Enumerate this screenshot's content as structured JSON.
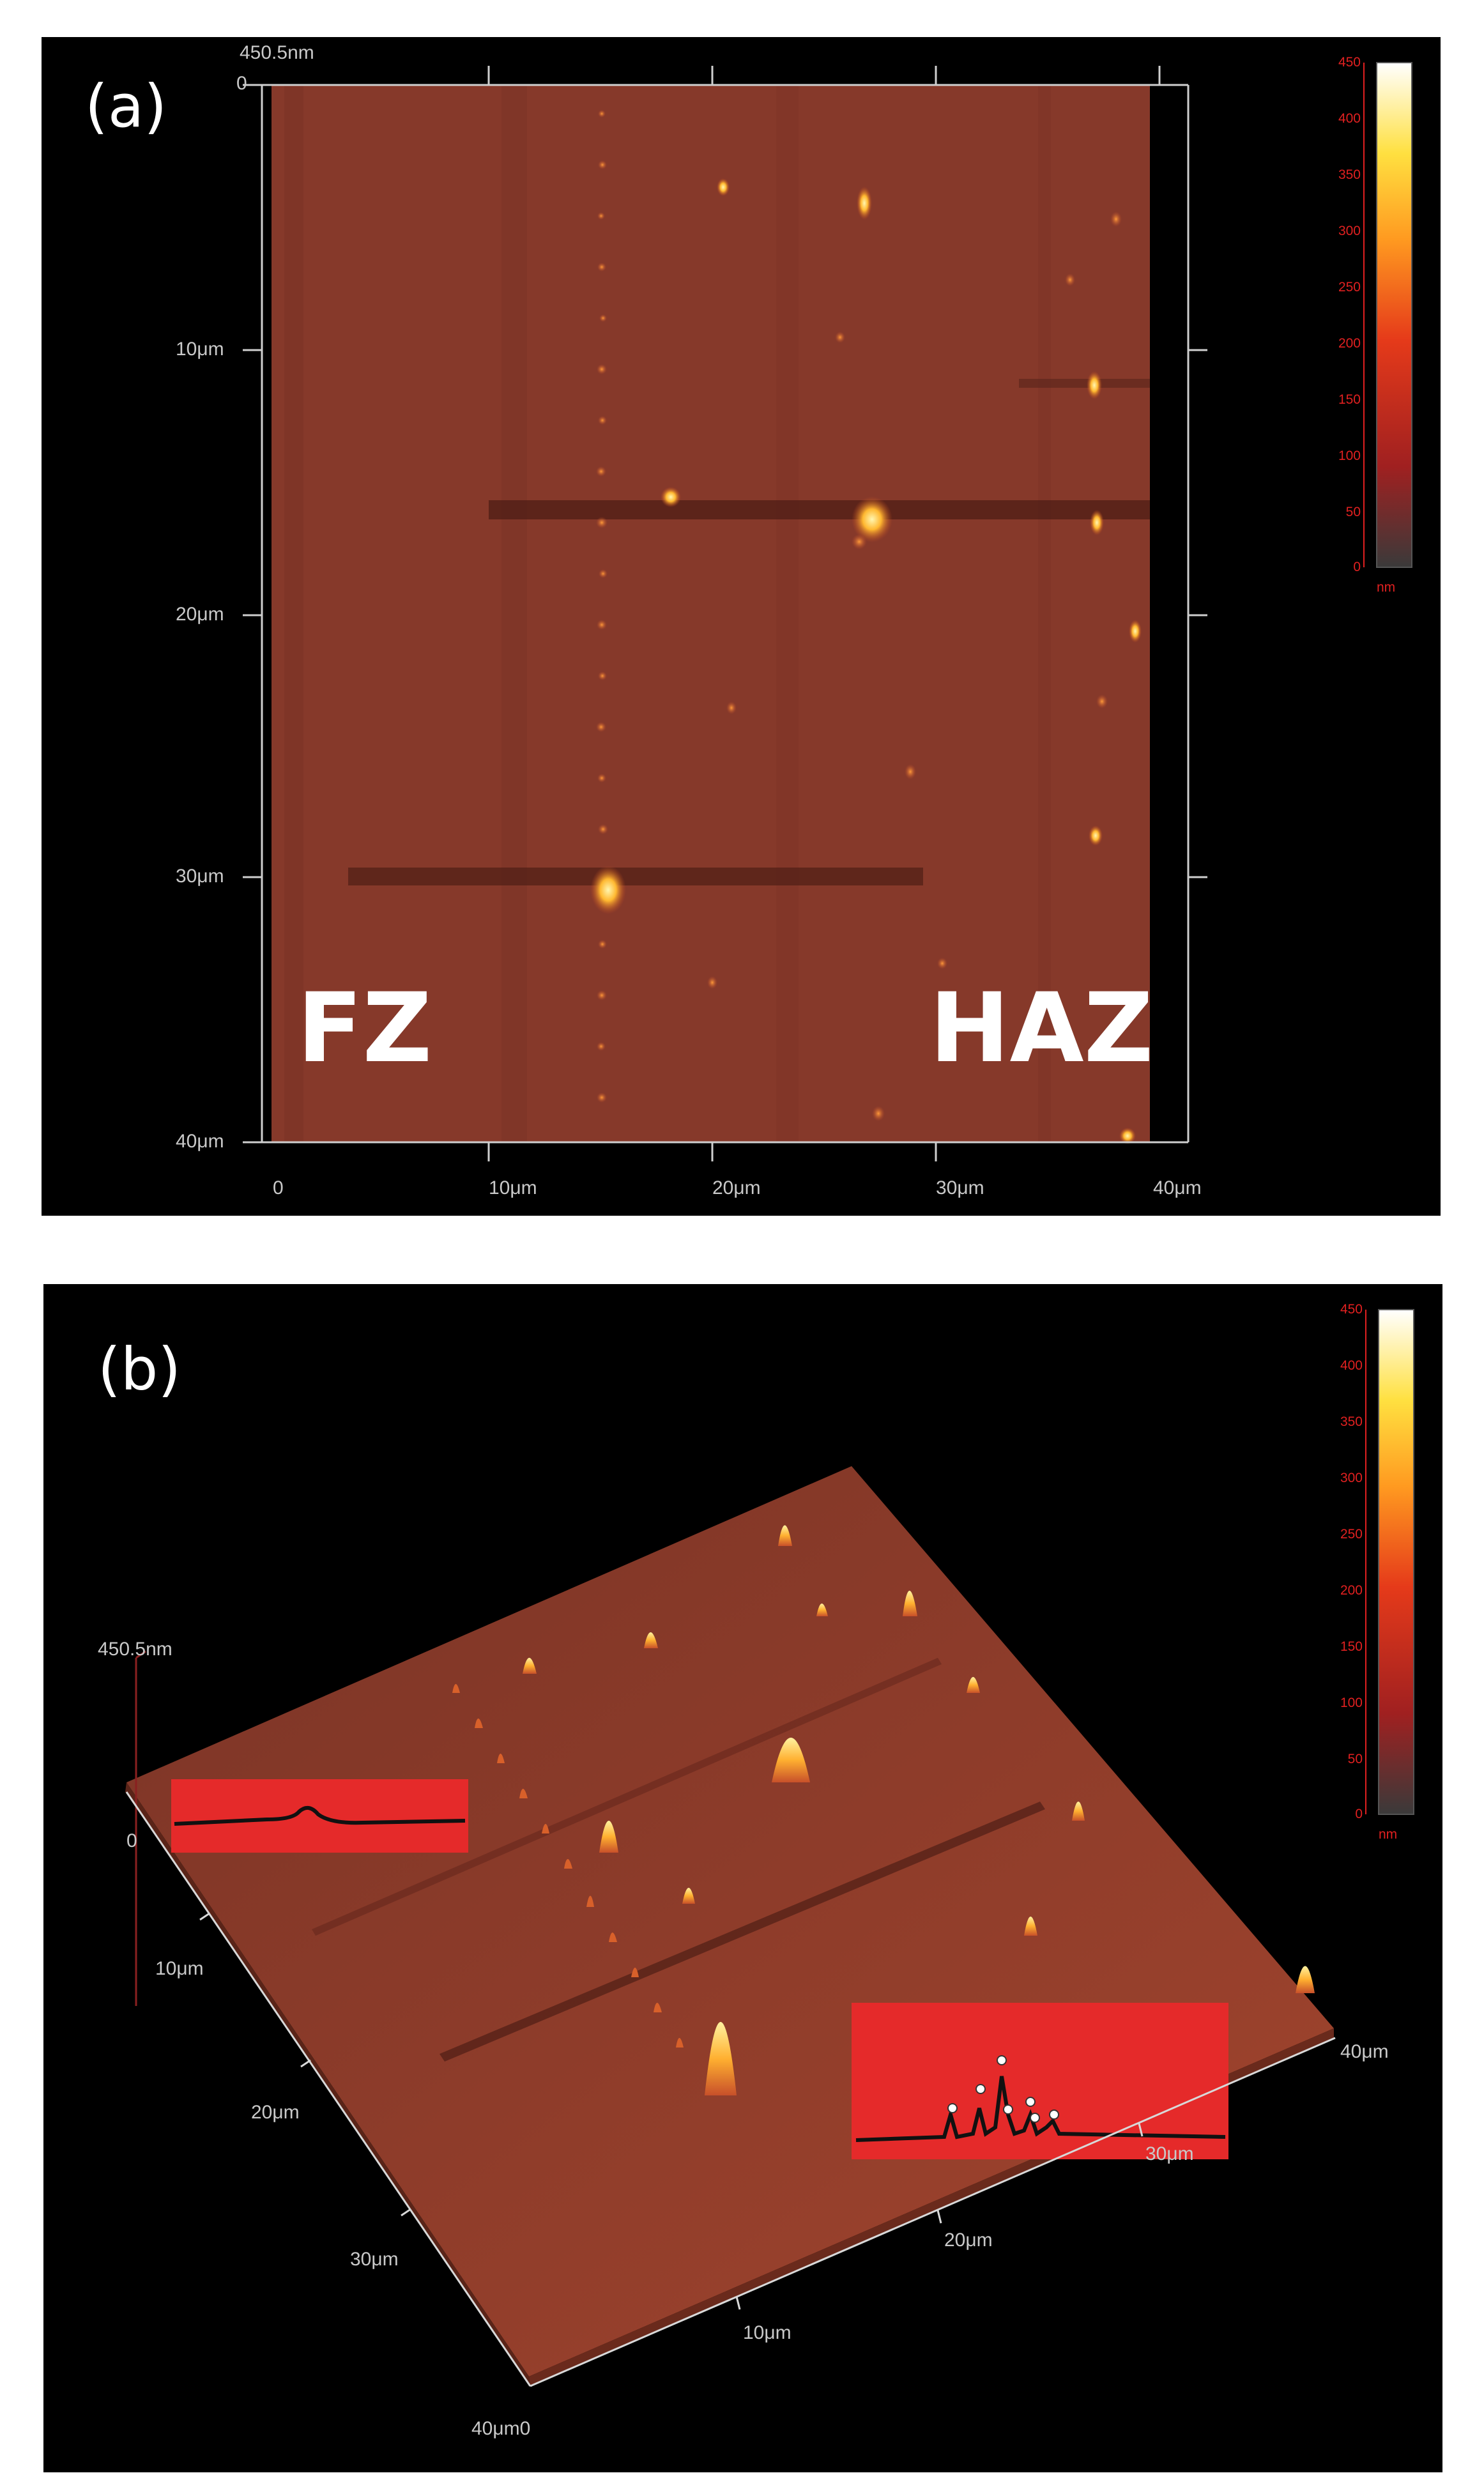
{
  "panel_a": {
    "label": "(a)",
    "z_max_label": "450.5nm",
    "y_ticks": [
      "0",
      "10μm",
      "20μm",
      "30μm",
      "40μm"
    ],
    "x_ticks": [
      "0",
      "10μm",
      "20μm",
      "30μm",
      "40μm"
    ],
    "region_left": "FZ",
    "region_right": "HAZ",
    "colorbar_ticks": [
      "450",
      "400",
      "350",
      "300",
      "250",
      "200",
      "150",
      "100",
      "50",
      "0"
    ],
    "colorbar_unit": "nm"
  },
  "panel_b": {
    "label": "(b)",
    "z_max_label": "450.5nm",
    "z_zero_label": "0",
    "left_axis_ticks": [
      "10μm",
      "20μm",
      "30μm"
    ],
    "corner_label": "40μm0",
    "bottom_axis_ticks": [
      "10μm",
      "20μm",
      "30μm"
    ],
    "right_corner_label": "40μm",
    "colorbar_ticks": [
      "450",
      "400",
      "350",
      "300",
      "250",
      "200",
      "150",
      "100",
      "50",
      "0"
    ],
    "colorbar_unit": "nm"
  },
  "colors": {
    "background": "#000000",
    "surface": "#8a3a28",
    "inset": "#e52a2a",
    "accent": "#ffd84a"
  }
}
